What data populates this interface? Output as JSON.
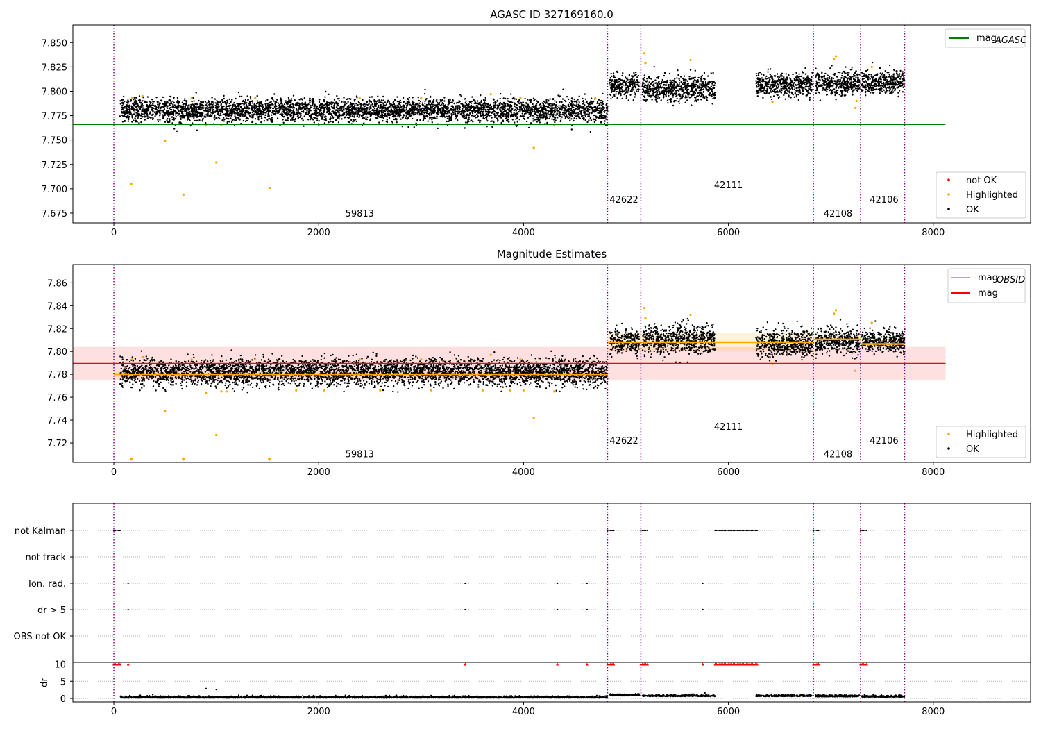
{
  "chart_data": [
    {
      "type": "scatter",
      "title": "AGASC ID 327169160.0",
      "xlim": [
        -400,
        8950
      ],
      "ylim": [
        7.665,
        7.868
      ],
      "x_ticks": [
        0,
        2000,
        4000,
        6000,
        8000
      ],
      "x_tick_labels": [
        "0",
        "2000",
        "4000",
        "6000",
        "8000"
      ],
      "y_ticks": [
        7.675,
        7.7,
        7.725,
        7.75,
        7.775,
        7.8,
        7.825,
        7.85
      ],
      "y_tick_labels": [
        "7.675",
        "7.700",
        "7.725",
        "7.750",
        "7.775",
        "7.800",
        "7.825",
        "7.850"
      ],
      "obs_boundaries": [
        0,
        4820,
        5145,
        6830,
        7290,
        7720
      ],
      "obs_labels": [
        {
          "text": "59813",
          "x": 2400,
          "y": 7.6715
        },
        {
          "text": "42622",
          "x": 4980,
          "y": 7.6855
        },
        {
          "text": "42111",
          "x": 6000,
          "y": 7.7005
        },
        {
          "text": "42108",
          "x": 7070,
          "y": 7.6715
        },
        {
          "text": "42106",
          "x": 7520,
          "y": 7.6855
        }
      ],
      "segments": [
        {
          "start": 60,
          "end": 4820,
          "mean": 7.7805,
          "spread": 0.0045
        },
        {
          "start": 4840,
          "end": 5130,
          "mean": 7.809,
          "spread": 0.0055
        },
        {
          "start": 5160,
          "end": 5870,
          "mean": 7.808,
          "spread": 0.0065
        },
        {
          "start": 6270,
          "end": 6820,
          "mean": 7.8095,
          "spread": 0.006
        },
        {
          "start": 6850,
          "end": 7280,
          "mean": 7.8105,
          "spread": 0.006
        },
        {
          "start": 7300,
          "end": 7720,
          "mean": 7.806,
          "spread": 0.005
        }
      ],
      "highlighted_points": [
        [
          170,
          7.705
        ],
        [
          500,
          7.749
        ],
        [
          680,
          7.694
        ],
        [
          1000,
          7.727
        ],
        [
          1520,
          7.701
        ],
        [
          4100,
          7.742
        ],
        [
          4300,
          7.765
        ],
        [
          1050,
          7.765
        ],
        [
          900,
          7.765
        ],
        [
          180,
          7.793
        ],
        [
          280,
          7.795
        ],
        [
          760,
          7.793
        ],
        [
          1380,
          7.793
        ],
        [
          2400,
          7.793
        ],
        [
          3000,
          7.793
        ],
        [
          3680,
          7.797
        ],
        [
          3970,
          7.793
        ],
        [
          4700,
          7.793
        ],
        [
          5180,
          7.839
        ],
        [
          5190,
          7.829
        ],
        [
          5630,
          7.832
        ],
        [
          7030,
          7.833
        ],
        [
          7050,
          7.836
        ],
        [
          7240,
          7.783
        ],
        [
          7250,
          7.79
        ],
        [
          7400,
          7.825
        ],
        [
          6430,
          7.789
        ]
      ],
      "hlines": [
        {
          "name": "mag_AGASC",
          "y": 7.766,
          "x0": -400,
          "x1": 8120,
          "color": "#008000"
        }
      ],
      "legend_upper": [
        {
          "label": "mag",
          "sub": "AGASC",
          "color": "#008000",
          "marker": "line"
        }
      ],
      "legend_lower": [
        {
          "label": "not OK",
          "color": "#ff0000",
          "marker": "dot"
        },
        {
          "label": "Highlighted",
          "color": "#ffa500",
          "marker": "dot"
        },
        {
          "label": "OK",
          "color": "#000000",
          "marker": "dot"
        }
      ]
    },
    {
      "type": "scatter",
      "title": "Magnitude Estimates",
      "xlim": [
        -400,
        8950
      ],
      "ylim": [
        7.703,
        7.876
      ],
      "x_ticks": [
        0,
        2000,
        4000,
        6000,
        8000
      ],
      "x_tick_labels": [
        "0",
        "2000",
        "4000",
        "6000",
        "8000"
      ],
      "y_ticks": [
        7.72,
        7.74,
        7.76,
        7.78,
        7.8,
        7.82,
        7.84,
        7.86
      ],
      "y_tick_labels": [
        "7.72",
        "7.74",
        "7.76",
        "7.78",
        "7.80",
        "7.82",
        "7.84",
        "7.86"
      ],
      "obs_boundaries": [
        0,
        4820,
        5145,
        6830,
        7290,
        7720
      ],
      "obs_labels": [
        {
          "text": "59813",
          "x": 2400,
          "y": 7.7075
        },
        {
          "text": "42622",
          "x": 4980,
          "y": 7.7195
        },
        {
          "text": "42111",
          "x": 6000,
          "y": 7.7315
        },
        {
          "text": "42108",
          "x": 7070,
          "y": 7.7075
        },
        {
          "text": "42106",
          "x": 7520,
          "y": 7.7195
        }
      ],
      "segments": [
        {
          "start": 60,
          "end": 4820,
          "mean": 7.7805,
          "spread": 0.0045
        },
        {
          "start": 4840,
          "end": 5130,
          "mean": 7.809,
          "spread": 0.0055
        },
        {
          "start": 5160,
          "end": 5870,
          "mean": 7.808,
          "spread": 0.0065
        },
        {
          "start": 6270,
          "end": 6820,
          "mean": 7.8095,
          "spread": 0.006
        },
        {
          "start": 6850,
          "end": 7280,
          "mean": 7.8105,
          "spread": 0.006
        },
        {
          "start": 7300,
          "end": 7720,
          "mean": 7.806,
          "spread": 0.005
        }
      ],
      "highlighted_points": [
        [
          500,
          7.748
        ],
        [
          1000,
          7.727
        ],
        [
          4100,
          7.742
        ],
        [
          4300,
          7.765
        ],
        [
          1050,
          7.765
        ],
        [
          1100,
          7.765
        ],
        [
          900,
          7.764
        ],
        [
          1780,
          7.766
        ],
        [
          2050,
          7.766
        ],
        [
          2600,
          7.766
        ],
        [
          3100,
          7.766
        ],
        [
          3600,
          7.766
        ],
        [
          3870,
          7.766
        ],
        [
          4000,
          7.766
        ],
        [
          180,
          7.793
        ],
        [
          280,
          7.795
        ],
        [
          760,
          7.793
        ],
        [
          1380,
          7.793
        ],
        [
          2400,
          7.793
        ],
        [
          3000,
          7.793
        ],
        [
          3680,
          7.797
        ],
        [
          3970,
          7.793
        ],
        [
          5180,
          7.838
        ],
        [
          5190,
          7.829
        ],
        [
          5630,
          7.832
        ],
        [
          7030,
          7.833
        ],
        [
          7050,
          7.836
        ],
        [
          7240,
          7.783
        ],
        [
          7400,
          7.825
        ],
        [
          6430,
          7.789
        ]
      ],
      "clipped_markers_x": [
        170,
        680,
        1520
      ],
      "obsid_means": [
        {
          "x0": 0,
          "x1": 4820,
          "y": 7.78
        },
        {
          "x0": 4820,
          "x1": 6830,
          "y": 7.808
        },
        {
          "x0": 6830,
          "x1": 7290,
          "y": 7.8105
        },
        {
          "x0": 7290,
          "x1": 7720,
          "y": 7.8065
        }
      ],
      "obsid_bands": [
        {
          "x0": 0,
          "x1": 4820,
          "y0": 7.7775,
          "y1": 7.7825
        },
        {
          "x0": 4820,
          "x1": 6830,
          "y0": 7.8,
          "y1": 7.816
        },
        {
          "x0": 6830,
          "x1": 7290,
          "y0": 7.8065,
          "y1": 7.8145
        },
        {
          "x0": 7290,
          "x1": 7720,
          "y0": 7.803,
          "y1": 7.81
        }
      ],
      "mag": {
        "y": 7.7895,
        "y0": 7.775,
        "y1": 7.804,
        "x0": -400,
        "x1": 8120,
        "color": "#ff0000"
      },
      "legend_upper": [
        {
          "label": "mag",
          "sub": "OBSID",
          "color": "#ffa500",
          "marker": "line"
        },
        {
          "label": "mag",
          "sub": "",
          "color": "#ff0000",
          "marker": "line"
        }
      ],
      "legend_lower": [
        {
          "label": "Highlighted",
          "color": "#ffa500",
          "marker": "dot"
        },
        {
          "label": "OK",
          "color": "#000000",
          "marker": "dot"
        }
      ]
    },
    {
      "type": "scatter",
      "title": "",
      "xlim": [
        -400,
        8950
      ],
      "x_ticks": [
        0,
        2000,
        4000,
        6000,
        8000
      ],
      "x_tick_labels": [
        "0",
        "2000",
        "4000",
        "6000",
        "8000"
      ],
      "flag_labels": [
        "not Kalman",
        "not track",
        "Ion. rad.",
        "dr > 5",
        "OBS not OK"
      ],
      "flags": {
        "not Kalman": [
          [
            0,
            60
          ],
          [
            4820,
            4880
          ],
          [
            5145,
            5210
          ],
          [
            5870,
            6280
          ],
          [
            6830,
            6880
          ],
          [
            7290,
            7350
          ]
        ],
        "not track": [],
        "Ion. rad.": [
          140,
          3430,
          4330,
          4620,
          5750
        ],
        "dr > 5": [
          140,
          3430,
          4330,
          4620,
          5750
        ],
        "OBS not OK": []
      },
      "dr_ylim": [
        -1,
        10.5
      ],
      "dr_ticks": [
        0,
        5,
        10
      ],
      "dr_tick_labels": [
        "0",
        "5",
        "10"
      ],
      "dr_ylabel": "dr",
      "dr_threshold": 10,
      "dr_clipped_x": [
        140,
        3430,
        4330,
        4620,
        5750
      ],
      "dr_clipped_ranges": [
        [
          0,
          60
        ],
        [
          4820,
          4880
        ],
        [
          5145,
          5210
        ],
        [
          5870,
          6280
        ],
        [
          6830,
          6880
        ],
        [
          7290,
          7350
        ]
      ],
      "dr_outliers": [
        [
          900,
          2.9
        ],
        [
          1000,
          2.6
        ],
        [
          380,
          1.1
        ]
      ],
      "dr_segments": [
        {
          "start": 60,
          "end": 4820,
          "mean": 0.15
        },
        {
          "start": 4840,
          "end": 5130,
          "mean": 0.8
        },
        {
          "start": 5160,
          "end": 5870,
          "mean": 0.6
        },
        {
          "start": 6270,
          "end": 6820,
          "mean": 0.6
        },
        {
          "start": 6850,
          "end": 7280,
          "mean": 0.5
        },
        {
          "start": 7300,
          "end": 7720,
          "mean": 0.4
        }
      ],
      "obs_boundaries": [
        0,
        4820,
        5145,
        6830,
        7290,
        7720
      ]
    }
  ]
}
